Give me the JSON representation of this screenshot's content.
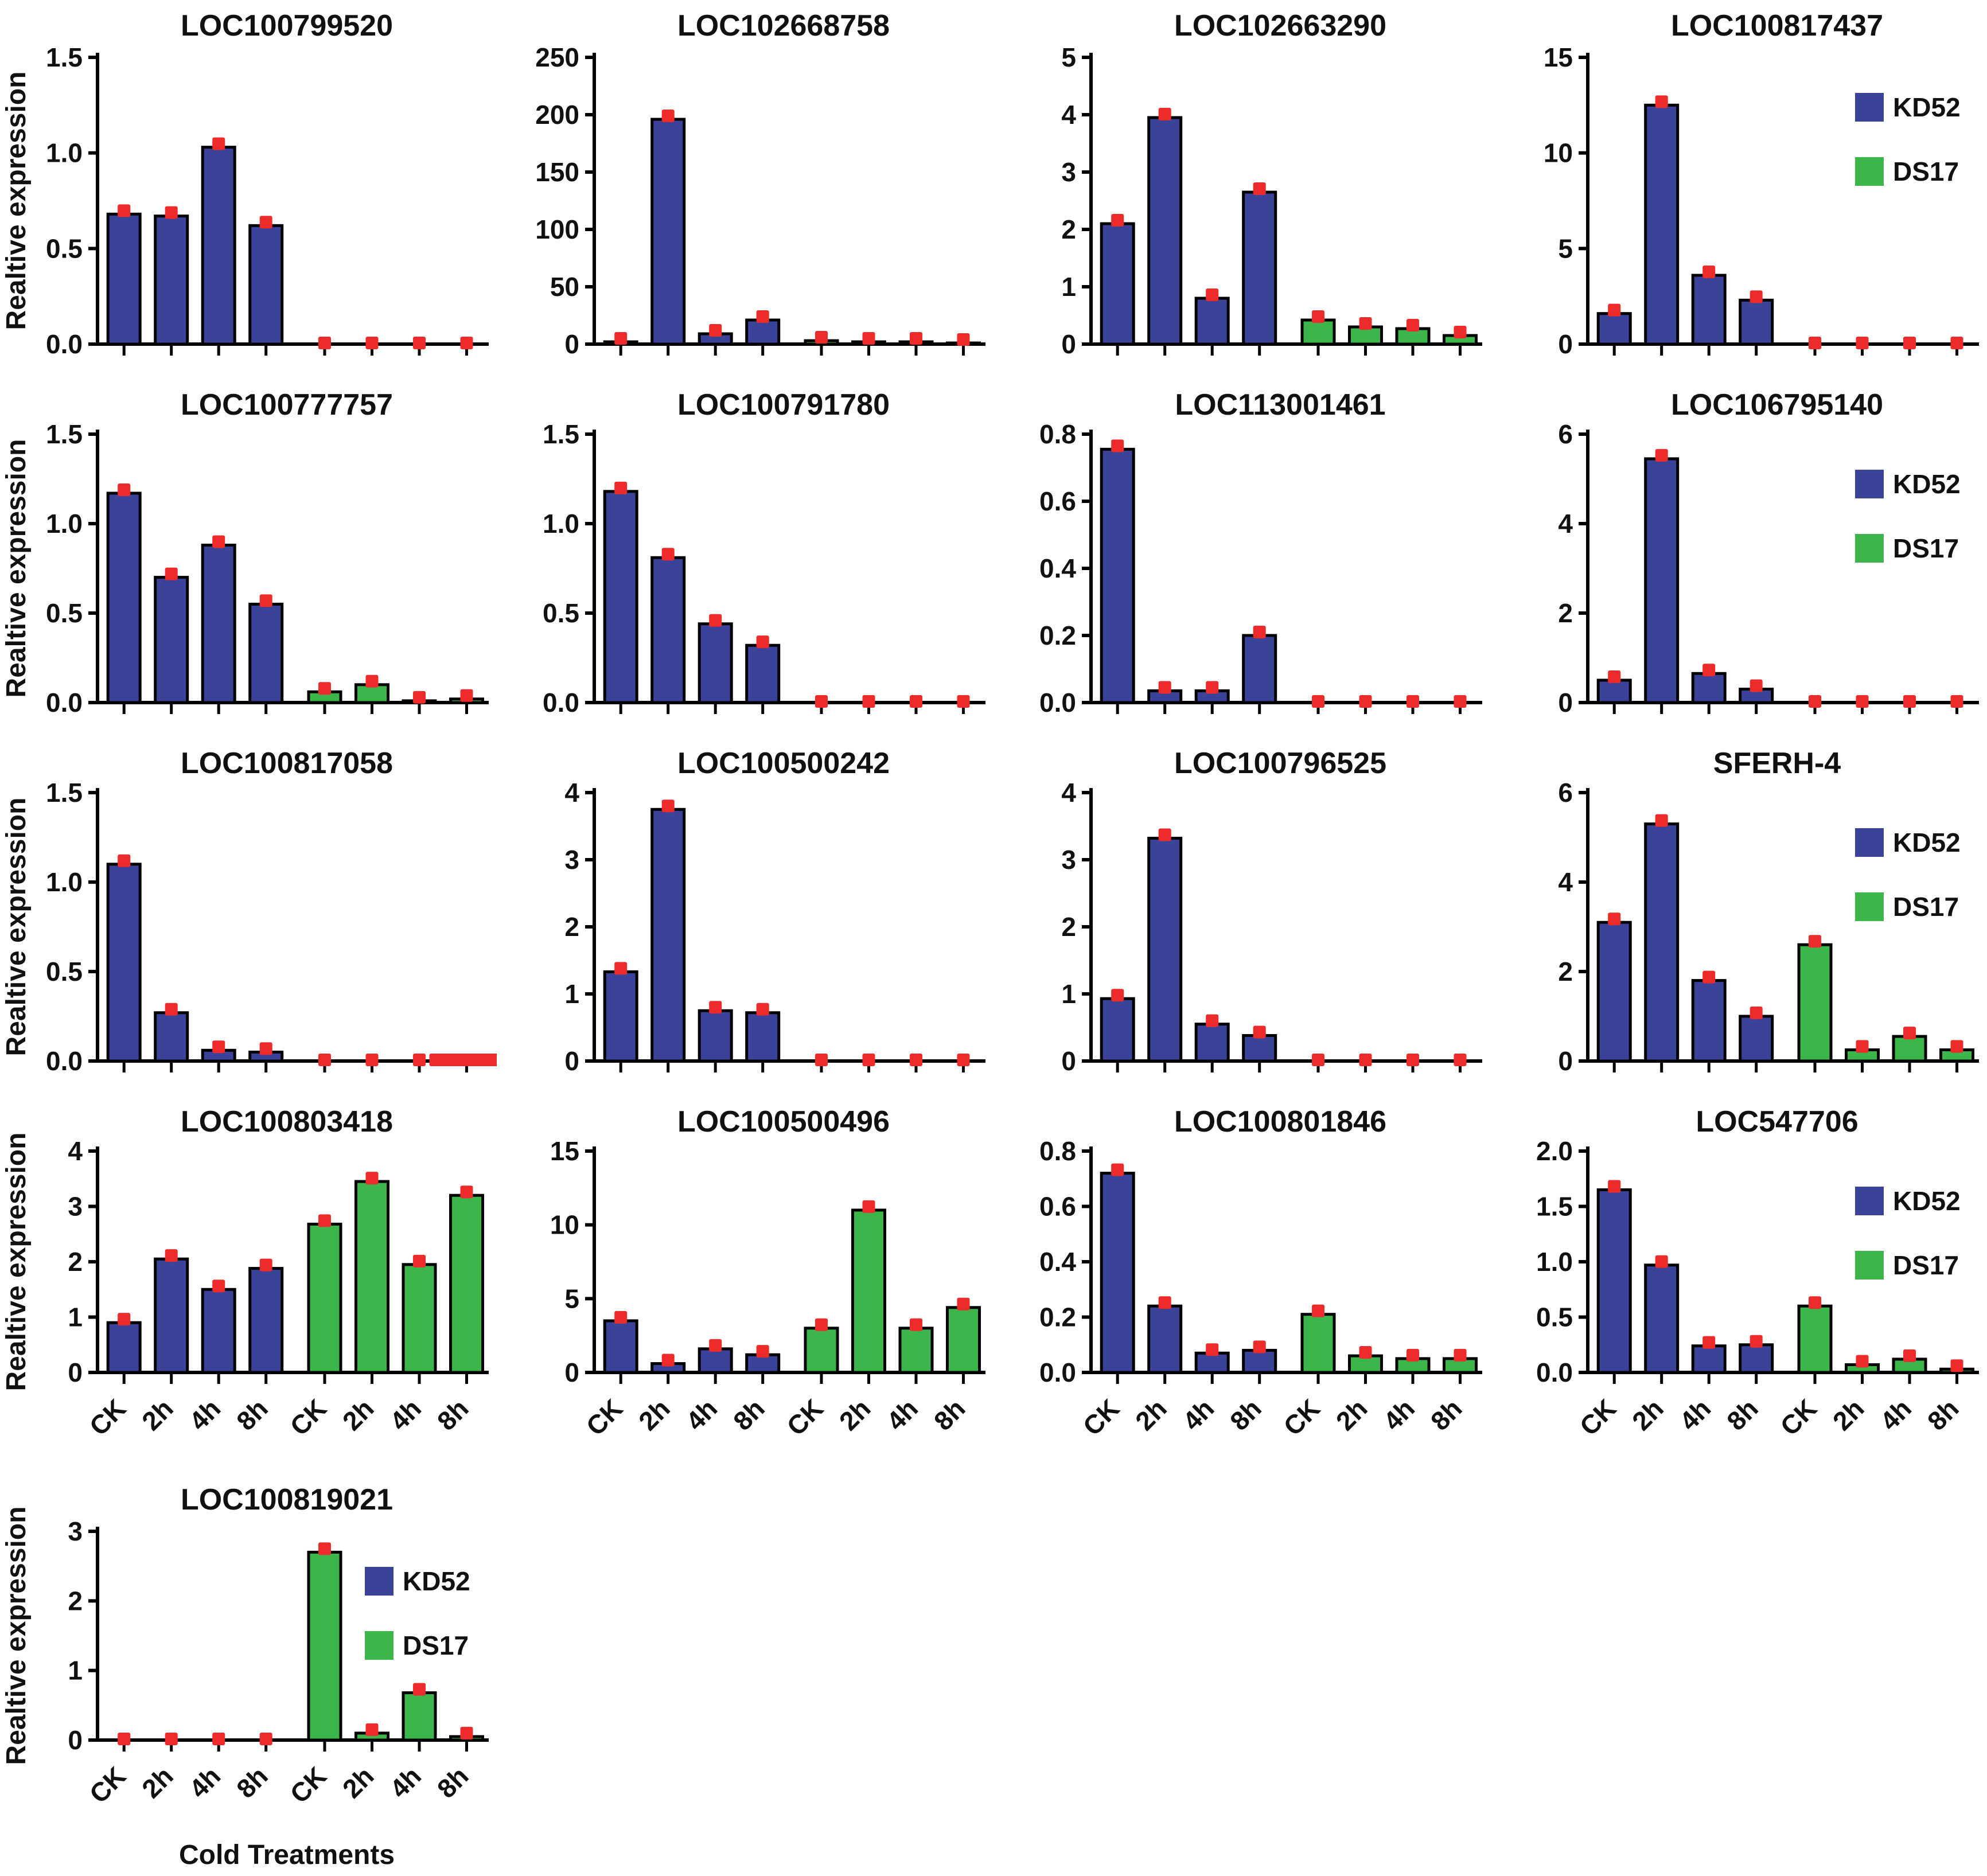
{
  "figure": {
    "ylabel": "Realtive expression",
    "xlabel": "Cold Treatments",
    "categories": [
      "CK",
      "2h",
      "4h",
      "8h"
    ],
    "legend": {
      "kd52_label": "KD52",
      "ds17_label": "DS17"
    },
    "colors": {
      "kd52": "#3b4398",
      "ds17": "#3cb54a",
      "error_marker": "#ee2b2b",
      "axis": "#000000",
      "text": "#111111"
    }
  },
  "chart_data": [
    {
      "type": "bar",
      "title": "LOC100799520",
      "ylim": [
        0,
        1.5
      ],
      "yticks": [
        "0.0",
        "0.5",
        "1.0",
        "1.5"
      ],
      "categories": [
        "CK",
        "2h",
        "4h",
        "8h"
      ],
      "series": [
        {
          "name": "KD52",
          "values": [
            0.68,
            0.67,
            1.03,
            0.62
          ]
        },
        {
          "name": "DS17",
          "values": [
            0,
            0,
            0,
            0
          ]
        }
      ],
      "show_legend": false,
      "show_ylabel": true,
      "show_xticklabels": false,
      "show_xlabel": false
    },
    {
      "type": "bar",
      "title": "LOC102668758",
      "ylim": [
        0,
        250
      ],
      "yticks": [
        "0",
        "50",
        "100",
        "150",
        "200",
        "250"
      ],
      "categories": [
        "CK",
        "2h",
        "4h",
        "8h"
      ],
      "series": [
        {
          "name": "KD52",
          "values": [
            2,
            196,
            9,
            21
          ]
        },
        {
          "name": "DS17",
          "values": [
            3,
            2,
            2,
            1
          ]
        }
      ],
      "show_legend": false,
      "show_ylabel": false,
      "show_xticklabels": false,
      "show_xlabel": false
    },
    {
      "type": "bar",
      "title": "LOC102663290",
      "ylim": [
        0,
        5
      ],
      "yticks": [
        "0",
        "1",
        "2",
        "3",
        "4",
        "5"
      ],
      "categories": [
        "CK",
        "2h",
        "4h",
        "8h"
      ],
      "series": [
        {
          "name": "KD52",
          "values": [
            2.1,
            3.95,
            0.8,
            2.65
          ]
        },
        {
          "name": "DS17",
          "values": [
            0.42,
            0.3,
            0.27,
            0.15
          ]
        }
      ],
      "show_legend": false,
      "show_ylabel": false,
      "show_xticklabels": false,
      "show_xlabel": false
    },
    {
      "type": "bar",
      "title": "LOC100817437",
      "ylim": [
        0,
        15
      ],
      "yticks": [
        "0",
        "5",
        "10",
        "15"
      ],
      "categories": [
        "CK",
        "2h",
        "4h",
        "8h"
      ],
      "series": [
        {
          "name": "KD52",
          "values": [
            1.6,
            12.5,
            3.6,
            2.3
          ]
        },
        {
          "name": "DS17",
          "values": [
            0,
            0,
            0,
            0
          ]
        }
      ],
      "show_legend": true,
      "show_ylabel": false,
      "show_xticklabels": false,
      "show_xlabel": false
    },
    {
      "type": "bar",
      "title": "LOC100777757",
      "ylim": [
        0,
        1.5
      ],
      "yticks": [
        "0.0",
        "0.5",
        "1.0",
        "1.5"
      ],
      "categories": [
        "CK",
        "2h",
        "4h",
        "8h"
      ],
      "series": [
        {
          "name": "KD52",
          "values": [
            1.17,
            0.7,
            0.88,
            0.55
          ]
        },
        {
          "name": "DS17",
          "values": [
            0.06,
            0.1,
            0.01,
            0.02
          ]
        }
      ],
      "show_legend": false,
      "show_ylabel": true,
      "show_xticklabels": false,
      "show_xlabel": false
    },
    {
      "type": "bar",
      "title": "LOC100791780",
      "ylim": [
        0,
        1.5
      ],
      "yticks": [
        "0.0",
        "0.5",
        "1.0",
        "1.5"
      ],
      "categories": [
        "CK",
        "2h",
        "4h",
        "8h"
      ],
      "series": [
        {
          "name": "KD52",
          "values": [
            1.18,
            0.81,
            0.44,
            0.32
          ]
        },
        {
          "name": "DS17",
          "values": [
            0,
            0,
            0,
            0
          ]
        }
      ],
      "show_legend": false,
      "show_ylabel": false,
      "show_xticklabels": false,
      "show_xlabel": false
    },
    {
      "type": "bar",
      "title": "LOC113001461",
      "ylim": [
        0,
        0.8
      ],
      "yticks": [
        "0.0",
        "0.2",
        "0.4",
        "0.6",
        "0.8"
      ],
      "categories": [
        "CK",
        "2h",
        "4h",
        "8h"
      ],
      "series": [
        {
          "name": "KD52",
          "values": [
            0.755,
            0.035,
            0.035,
            0.2
          ]
        },
        {
          "name": "DS17",
          "values": [
            0,
            0,
            0,
            0
          ]
        }
      ],
      "show_legend": false,
      "show_ylabel": false,
      "show_xticklabels": false,
      "show_xlabel": false
    },
    {
      "type": "bar",
      "title": "LOC106795140",
      "ylim": [
        0,
        6
      ],
      "yticks": [
        "0",
        "2",
        "4",
        "6"
      ],
      "categories": [
        "CK",
        "2h",
        "4h",
        "8h"
      ],
      "series": [
        {
          "name": "KD52",
          "values": [
            0.5,
            5.45,
            0.65,
            0.3
          ]
        },
        {
          "name": "DS17",
          "values": [
            0,
            0,
            0,
            0
          ]
        }
      ],
      "show_legend": true,
      "show_ylabel": false,
      "show_xticklabels": false,
      "show_xlabel": false
    },
    {
      "type": "bar",
      "title": "LOC100817058",
      "ylim": [
        0,
        1.5
      ],
      "yticks": [
        "0.0",
        "0.5",
        "1.0",
        "1.5"
      ],
      "categories": [
        "CK",
        "2h",
        "4h",
        "8h"
      ],
      "series": [
        {
          "name": "KD52",
          "values": [
            1.1,
            0.27,
            0.06,
            0.05
          ]
        },
        {
          "name": "DS17",
          "values": [
            0,
            0,
            0,
            0
          ]
        }
      ],
      "wide_error_slot": 7,
      "show_legend": false,
      "show_ylabel": true,
      "show_xticklabels": false,
      "show_xlabel": false
    },
    {
      "type": "bar",
      "title": "LOC100500242",
      "ylim": [
        0,
        4
      ],
      "yticks": [
        "0",
        "1",
        "2",
        "3",
        "4"
      ],
      "categories": [
        "CK",
        "2h",
        "4h",
        "8h"
      ],
      "series": [
        {
          "name": "KD52",
          "values": [
            1.33,
            3.75,
            0.75,
            0.72
          ]
        },
        {
          "name": "DS17",
          "values": [
            0,
            0,
            0,
            0
          ]
        }
      ],
      "show_legend": false,
      "show_ylabel": false,
      "show_xticklabels": false,
      "show_xlabel": false
    },
    {
      "type": "bar",
      "title": "LOC100796525",
      "ylim": [
        0,
        4
      ],
      "yticks": [
        "0",
        "1",
        "2",
        "3",
        "4"
      ],
      "categories": [
        "CK",
        "2h",
        "4h",
        "8h"
      ],
      "series": [
        {
          "name": "KD52",
          "values": [
            0.93,
            3.32,
            0.55,
            0.38
          ]
        },
        {
          "name": "DS17",
          "values": [
            0,
            0,
            0,
            0
          ]
        }
      ],
      "show_legend": false,
      "show_ylabel": false,
      "show_xticklabels": false,
      "show_xlabel": false
    },
    {
      "type": "bar",
      "title": "SFERH-4",
      "ylim": [
        0,
        6
      ],
      "yticks": [
        "0",
        "2",
        "4",
        "6"
      ],
      "categories": [
        "CK",
        "2h",
        "4h",
        "8h"
      ],
      "series": [
        {
          "name": "KD52",
          "values": [
            3.1,
            5.3,
            1.8,
            1.0
          ]
        },
        {
          "name": "DS17",
          "values": [
            2.6,
            0.25,
            0.55,
            0.25
          ]
        }
      ],
      "show_legend": true,
      "show_ylabel": false,
      "show_xticklabels": false,
      "show_xlabel": false
    },
    {
      "type": "bar",
      "title": "LOC100803418",
      "ylim": [
        0,
        4
      ],
      "yticks": [
        "0",
        "1",
        "2",
        "3",
        "4"
      ],
      "categories": [
        "CK",
        "2h",
        "4h",
        "8h"
      ],
      "series": [
        {
          "name": "KD52",
          "values": [
            0.9,
            2.05,
            1.5,
            1.88
          ]
        },
        {
          "name": "DS17",
          "values": [
            2.68,
            3.45,
            1.95,
            3.2
          ]
        }
      ],
      "show_legend": false,
      "show_ylabel": true,
      "show_xticklabels": true,
      "show_xlabel": false
    },
    {
      "type": "bar",
      "title": "LOC100500496",
      "ylim": [
        0,
        15
      ],
      "yticks": [
        "0",
        "5",
        "10",
        "15"
      ],
      "categories": [
        "CK",
        "2h",
        "4h",
        "8h"
      ],
      "series": [
        {
          "name": "KD52",
          "values": [
            3.5,
            0.6,
            1.6,
            1.2
          ]
        },
        {
          "name": "DS17",
          "values": [
            3.0,
            11.0,
            3.0,
            4.4
          ]
        }
      ],
      "show_legend": false,
      "show_ylabel": false,
      "show_xticklabels": true,
      "show_xlabel": false
    },
    {
      "type": "bar",
      "title": "LOC100801846",
      "ylim": [
        0,
        0.8
      ],
      "yticks": [
        "0.0",
        "0.2",
        "0.4",
        "0.6",
        "0.8"
      ],
      "categories": [
        "CK",
        "2h",
        "4h",
        "8h"
      ],
      "series": [
        {
          "name": "KD52",
          "values": [
            0.72,
            0.24,
            0.07,
            0.08
          ]
        },
        {
          "name": "DS17",
          "values": [
            0.21,
            0.06,
            0.05,
            0.05
          ]
        }
      ],
      "show_legend": false,
      "show_ylabel": false,
      "show_xticklabels": true,
      "show_xlabel": false
    },
    {
      "type": "bar",
      "title": "LOC547706",
      "ylim": [
        0,
        2.0
      ],
      "yticks": [
        "0.0",
        "0.5",
        "1.0",
        "1.5",
        "2.0"
      ],
      "categories": [
        "CK",
        "2h",
        "4h",
        "8h"
      ],
      "series": [
        {
          "name": "KD52",
          "values": [
            1.65,
            0.97,
            0.24,
            0.25
          ]
        },
        {
          "name": "DS17",
          "values": [
            0.6,
            0.07,
            0.12,
            0.03
          ]
        }
      ],
      "show_legend": true,
      "show_ylabel": false,
      "show_xticklabels": true,
      "show_xlabel": false
    },
    {
      "type": "bar",
      "title": "LOC100819021",
      "ylim": [
        0,
        3
      ],
      "yticks": [
        "0",
        "1",
        "2",
        "3"
      ],
      "categories": [
        "CK",
        "2h",
        "4h",
        "8h"
      ],
      "series": [
        {
          "name": "KD52",
          "values": [
            0,
            0,
            0,
            0
          ]
        },
        {
          "name": "DS17",
          "values": [
            2.7,
            0.1,
            0.68,
            0.05
          ]
        }
      ],
      "show_legend": true,
      "show_ylabel": true,
      "show_xticklabels": true,
      "show_xlabel": true
    }
  ]
}
